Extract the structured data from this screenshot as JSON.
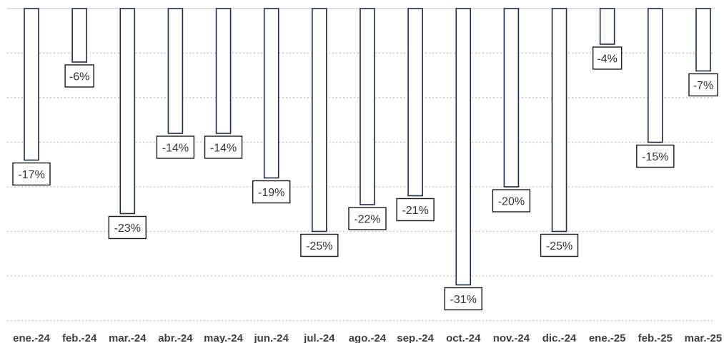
{
  "chart_data": {
    "type": "bar",
    "categories": [
      "ene.-24",
      "feb.-24",
      "mar.-24",
      "abr.-24",
      "may.-24",
      "jun.-24",
      "jul.-24",
      "ago.-24",
      "sep.-24",
      "oct.-24",
      "nov.-24",
      "dic.-24",
      "ene.-25",
      "feb.-25",
      "mar.-25"
    ],
    "values": [
      -17,
      -6,
      -23,
      -14,
      -14,
      -19,
      -25,
      -22,
      -21,
      -31,
      -20,
      -25,
      -4,
      -15,
      -7
    ],
    "value_labels": [
      "-17%",
      "-6%",
      "-23%",
      "-14%",
      "-14%",
      "-19%",
      "-25%",
      "-22%",
      "-21%",
      "-31%",
      "-20%",
      "-25%",
      "-4%",
      "-15%",
      "-7%"
    ],
    "title": "",
    "xlabel": "",
    "ylabel": "",
    "ylim": [
      -35,
      0
    ],
    "grid": true,
    "legend": "none",
    "colors": {
      "bar_fill": "#ffffff",
      "bar_stroke": "#1f2a44",
      "grid": "#bfbfbf",
      "label_text": "#333333",
      "tick_text": "#404040"
    }
  }
}
